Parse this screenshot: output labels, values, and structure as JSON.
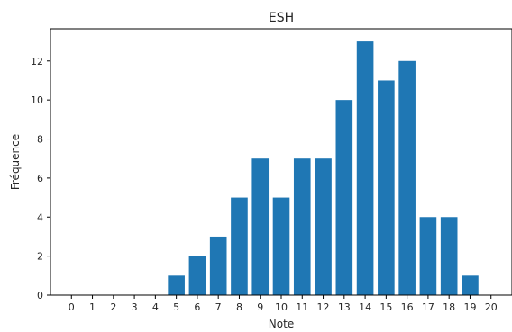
{
  "chart_data": {
    "type": "bar",
    "title": "ESH",
    "xlabel": "Note",
    "ylabel": "Fréquence",
    "categories": [
      "0",
      "1",
      "2",
      "3",
      "4",
      "5",
      "6",
      "7",
      "8",
      "9",
      "10",
      "11",
      "12",
      "13",
      "14",
      "15",
      "16",
      "17",
      "18",
      "19",
      "20"
    ],
    "values": [
      0,
      0,
      0,
      0,
      0,
      1,
      2,
      3,
      5,
      7,
      5,
      7,
      7,
      10,
      13,
      11,
      12,
      4,
      4,
      1,
      0
    ],
    "ylim": [
      0,
      13.65
    ],
    "y_ticks": [
      0,
      2,
      4,
      6,
      8,
      10,
      12
    ],
    "grid": false,
    "bar_color": "#1f77b4"
  }
}
